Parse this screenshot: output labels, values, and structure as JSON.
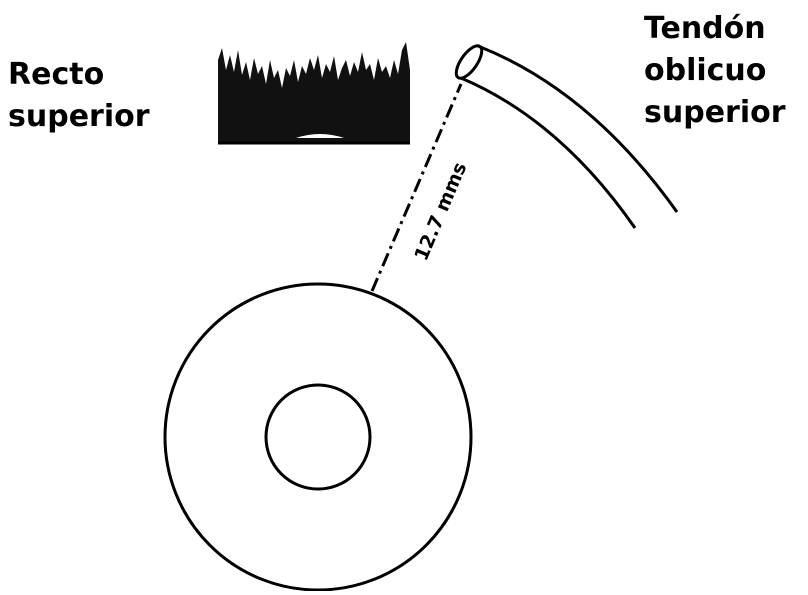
{
  "labels": {
    "muscle": [
      "Recto",
      "superior"
    ],
    "tendon": [
      "Tendón",
      "oblicuo",
      "superior"
    ],
    "distance": "12.7 mms"
  }
}
